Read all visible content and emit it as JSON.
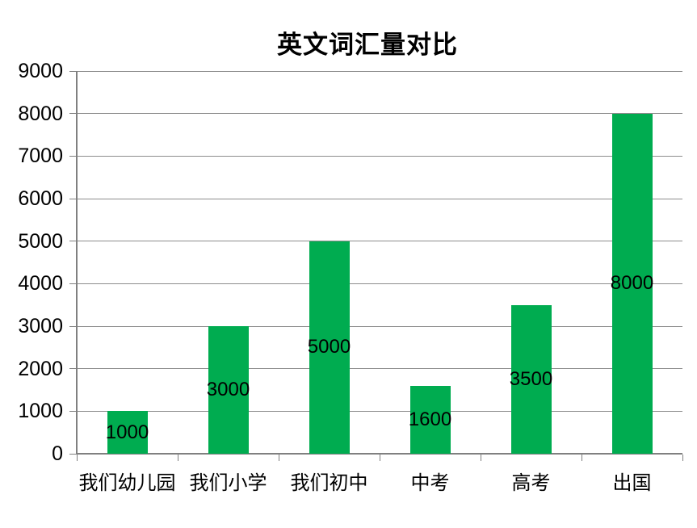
{
  "chart_data": {
    "type": "bar",
    "title": "英文词汇量对比",
    "categories": [
      "我们幼儿园",
      "我们小学",
      "我们初中",
      "中考",
      "高考",
      "出国"
    ],
    "values": [
      1000,
      3000,
      5000,
      1600,
      3500,
      8000
    ],
    "xlabel": "",
    "ylabel": "",
    "ylim": [
      0,
      9000
    ],
    "ytick_step": 1000,
    "ytick_labels": [
      "0",
      "1000",
      "2000",
      "3000",
      "4000",
      "5000",
      "6000",
      "7000",
      "8000",
      "9000"
    ],
    "data_labels": [
      "1000",
      "3000",
      "5000",
      "1600",
      "3500",
      "8000"
    ],
    "data_label_position": "inside-center",
    "grid": true,
    "legend": false,
    "colors": {
      "bar_fill": "#00AC50",
      "gridline": "#8C8C8C",
      "axis": "#808080",
      "text": "#000000",
      "background": "#FFFFFF"
    }
  }
}
